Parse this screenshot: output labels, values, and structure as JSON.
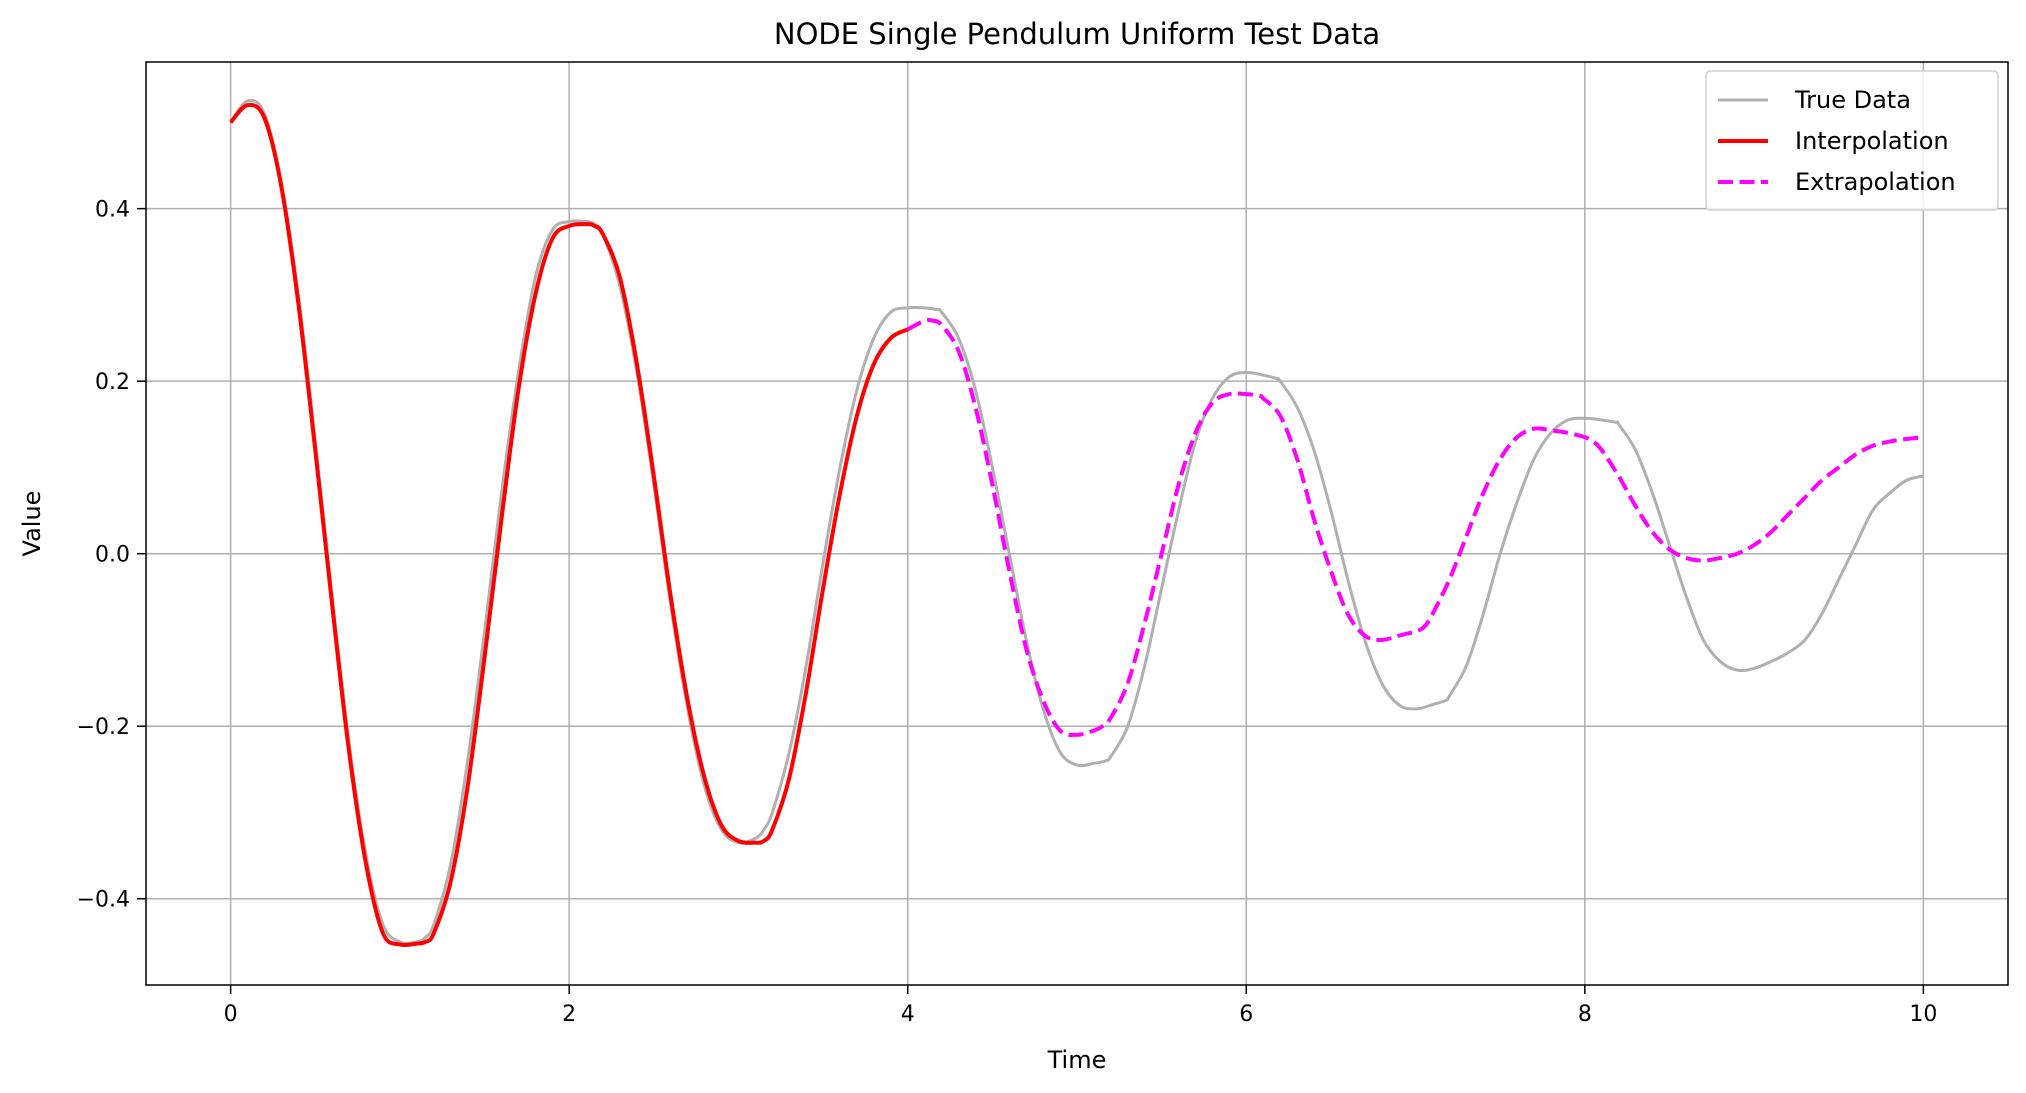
{
  "chart_data": {
    "type": "line",
    "title": "NODE Single Pendulum Uniform Test Data",
    "xlabel": "Time",
    "ylabel": "Value",
    "xlim": [
      -0.5,
      10.5
    ],
    "ylim": [
      -0.5,
      0.57
    ],
    "xticks": [
      0,
      2,
      4,
      6,
      8,
      10
    ],
    "xtick_labels": [
      "0",
      "2",
      "4",
      "6",
      "8",
      "10"
    ],
    "yticks": [
      -0.4,
      -0.2,
      0.0,
      0.2,
      0.4
    ],
    "ytick_labels": [
      "−0.4",
      "−0.2",
      "0.0",
      "0.2",
      "0.4"
    ],
    "grid": true,
    "legend_position": "top-right",
    "series": [
      {
        "name": "True Data",
        "color": "#b0b0b0",
        "style": "solid",
        "x": [
          0,
          0.1,
          0.2,
          0.3,
          0.4,
          0.5,
          0.6,
          0.7,
          0.8,
          0.9,
          1.0,
          1.1,
          1.15,
          1.2,
          1.3,
          1.4,
          1.5,
          1.6,
          1.7,
          1.8,
          1.9,
          2.0,
          2.1,
          2.15,
          2.2,
          2.3,
          2.4,
          2.5,
          2.6,
          2.7,
          2.8,
          2.9,
          3.0,
          3.1,
          3.15,
          3.2,
          3.3,
          3.4,
          3.5,
          3.6,
          3.7,
          3.8,
          3.9,
          4.0,
          4.1,
          4.17,
          4.2,
          4.3,
          4.4,
          4.5,
          4.6,
          4.7,
          4.8,
          4.9,
          5.0,
          5.1,
          5.17,
          5.2,
          5.3,
          5.4,
          5.5,
          5.6,
          5.7,
          5.8,
          5.9,
          6.0,
          6.1,
          6.18,
          6.2,
          6.3,
          6.4,
          6.5,
          6.6,
          6.7,
          6.8,
          6.9,
          7.0,
          7.1,
          7.18,
          7.2,
          7.3,
          7.4,
          7.5,
          7.6,
          7.7,
          7.8,
          7.9,
          8.0,
          8.1,
          8.19,
          8.2,
          8.3,
          8.4,
          8.5,
          8.6,
          8.7,
          8.8,
          8.9,
          9.0,
          9.1,
          9.2,
          9.3,
          9.4,
          9.5,
          9.6,
          9.7,
          9.8,
          9.9,
          10.0
        ],
        "y": [
          0.5,
          0.525,
          0.51,
          0.43,
          0.3,
          0.13,
          -0.05,
          -0.22,
          -0.35,
          -0.43,
          -0.45,
          -0.45,
          -0.445,
          -0.43,
          -0.36,
          -0.24,
          -0.09,
          0.07,
          0.21,
          0.32,
          0.375,
          0.385,
          0.385,
          0.382,
          0.37,
          0.31,
          0.21,
          0.08,
          -0.06,
          -0.18,
          -0.27,
          -0.32,
          -0.335,
          -0.33,
          -0.32,
          -0.3,
          -0.23,
          -0.13,
          -0.01,
          0.1,
          0.19,
          0.25,
          0.28,
          0.285,
          0.285,
          0.283,
          0.28,
          0.25,
          0.19,
          0.1,
          0.0,
          -0.1,
          -0.18,
          -0.23,
          -0.245,
          -0.243,
          -0.24,
          -0.235,
          -0.2,
          -0.13,
          -0.04,
          0.05,
          0.13,
          0.18,
          0.205,
          0.21,
          0.207,
          0.203,
          0.2,
          0.17,
          0.12,
          0.05,
          -0.03,
          -0.1,
          -0.15,
          -0.175,
          -0.18,
          -0.175,
          -0.17,
          -0.165,
          -0.13,
          -0.07,
          0.0,
          0.06,
          0.11,
          0.14,
          0.155,
          0.157,
          0.155,
          0.152,
          0.15,
          0.12,
          0.07,
          0.01,
          -0.05,
          -0.1,
          -0.125,
          -0.135,
          -0.133,
          -0.125,
          -0.115,
          -0.1,
          -0.07,
          -0.03,
          0.01,
          0.05,
          0.07,
          0.085,
          0.09
        ]
      },
      {
        "name": "Interpolation",
        "color": "#ff0000",
        "style": "solid",
        "x": [
          0,
          0.1,
          0.2,
          0.3,
          0.4,
          0.5,
          0.6,
          0.7,
          0.8,
          0.9,
          1.0,
          1.1,
          1.15,
          1.2,
          1.3,
          1.4,
          1.5,
          1.6,
          1.7,
          1.8,
          1.9,
          2.0,
          2.1,
          2.15,
          2.2,
          2.3,
          2.4,
          2.5,
          2.6,
          2.7,
          2.8,
          2.9,
          3.0,
          3.1,
          3.15,
          3.2,
          3.3,
          3.4,
          3.5,
          3.6,
          3.7,
          3.8,
          3.9,
          4.0
        ],
        "y": [
          0.5,
          0.52,
          0.505,
          0.425,
          0.29,
          0.12,
          -0.06,
          -0.23,
          -0.36,
          -0.44,
          -0.453,
          -0.452,
          -0.45,
          -0.44,
          -0.38,
          -0.27,
          -0.12,
          0.04,
          0.19,
          0.3,
          0.365,
          0.38,
          0.382,
          0.38,
          0.37,
          0.32,
          0.22,
          0.09,
          -0.05,
          -0.17,
          -0.26,
          -0.315,
          -0.333,
          -0.335,
          -0.333,
          -0.32,
          -0.26,
          -0.16,
          -0.04,
          0.07,
          0.16,
          0.22,
          0.25,
          0.26
        ]
      },
      {
        "name": "Extrapolation",
        "color": "#ff00ff",
        "style": "dashed",
        "x": [
          4.0,
          4.1,
          4.15,
          4.2,
          4.3,
          4.4,
          4.5,
          4.6,
          4.7,
          4.8,
          4.9,
          5.0,
          5.1,
          5.15,
          5.2,
          5.3,
          5.4,
          5.5,
          5.6,
          5.7,
          5.8,
          5.9,
          6.0,
          6.08,
          6.1,
          6.2,
          6.3,
          6.4,
          6.5,
          6.6,
          6.7,
          6.8,
          6.9,
          7.0,
          7.05,
          7.1,
          7.2,
          7.3,
          7.4,
          7.5,
          7.6,
          7.7,
          7.8,
          7.9,
          8.0,
          8.05,
          8.1,
          8.2,
          8.3,
          8.4,
          8.5,
          8.6,
          8.7,
          8.8,
          8.9,
          9.0,
          9.1,
          9.2,
          9.3,
          9.4,
          9.5,
          9.6,
          9.7,
          9.8,
          9.9,
          10.0
        ],
        "y": [
          0.26,
          0.27,
          0.27,
          0.265,
          0.235,
          0.17,
          0.08,
          -0.02,
          -0.11,
          -0.17,
          -0.205,
          -0.21,
          -0.205,
          -0.2,
          -0.19,
          -0.15,
          -0.08,
          0.0,
          0.08,
          0.14,
          0.175,
          0.185,
          0.185,
          0.183,
          0.18,
          0.16,
          0.11,
          0.04,
          -0.02,
          -0.07,
          -0.095,
          -0.1,
          -0.095,
          -0.09,
          -0.085,
          -0.07,
          -0.03,
          0.02,
          0.07,
          0.11,
          0.135,
          0.145,
          0.143,
          0.14,
          0.135,
          0.13,
          0.12,
          0.09,
          0.055,
          0.025,
          0.005,
          -0.005,
          -0.008,
          -0.005,
          0.0,
          0.01,
          0.025,
          0.045,
          0.065,
          0.085,
          0.1,
          0.115,
          0.125,
          0.13,
          0.133,
          0.135
        ]
      }
    ]
  }
}
